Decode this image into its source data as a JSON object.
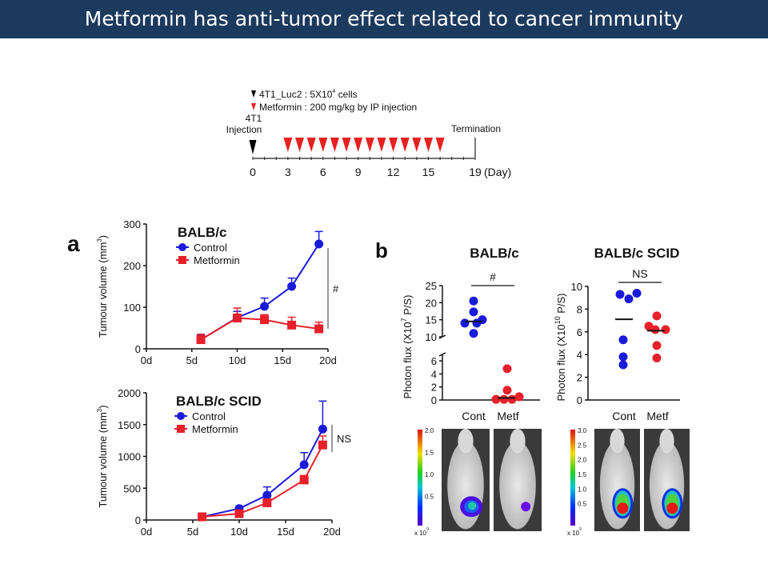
{
  "slide": {
    "title": "Metformin has anti-tumor effect related to cancer immunity"
  },
  "timeline": {
    "legend": [
      {
        "marker": "black-triangle",
        "text": "4T1_Luc2 : 5X10",
        "sup": "4",
        "suffix": " cells"
      },
      {
        "marker": "red-triangle",
        "text": "Metformin : 200 mg/kg by IP injection"
      }
    ],
    "injection_label_1": "4T1",
    "injection_label_2": "Injection",
    "termination_label": "Termination",
    "unit_label": "(Day)",
    "tick_days": [
      0,
      3,
      6,
      9,
      12,
      15,
      19
    ],
    "injection_day": 0,
    "metformin_days": [
      3,
      4,
      5,
      6,
      7,
      8,
      9,
      10,
      11,
      12,
      13,
      14,
      15,
      16
    ],
    "termination_day": 19,
    "colors": {
      "tumor": "#000000",
      "metformin": "#e82020"
    }
  },
  "panel_labels": {
    "a": "a",
    "b": "b"
  },
  "chart_data": [
    {
      "id": "a_top",
      "type": "line",
      "title": "BALB/c",
      "xlabel": "",
      "ylabel": "Tumour volume (mm",
      "ylabel_sup": "3",
      "ylabel_end": ")",
      "xlim": [
        0,
        20
      ],
      "ylim": [
        0,
        300
      ],
      "xticks": [
        0,
        5,
        10,
        15,
        20
      ],
      "xtick_labels": [
        "0d",
        "5d",
        "10d",
        "15d",
        "20d"
      ],
      "yticks": [
        0,
        100,
        200,
        300
      ],
      "series": [
        {
          "name": "Control",
          "color": "#1a1adb",
          "marker": "circle",
          "x": [
            6,
            10,
            13,
            16,
            19
          ],
          "y": [
            22,
            75,
            102,
            150,
            252
          ],
          "err_upper": [
            33,
            90,
            122,
            170,
            282
          ]
        },
        {
          "name": "Metformin",
          "color": "#e8202a",
          "marker": "square",
          "x": [
            6,
            10,
            13,
            16,
            19
          ],
          "y": [
            22,
            74,
            70,
            57,
            48
          ],
          "err_upper": [
            35,
            98,
            82,
            76,
            64
          ]
        }
      ],
      "significance": "#"
    },
    {
      "id": "a_bottom",
      "type": "line",
      "title": "BALB/c SCID",
      "xlabel": "",
      "ylabel": "Tumour volume (mm",
      "ylabel_sup": "3",
      "ylabel_end": ")",
      "xlim": [
        0,
        20
      ],
      "ylim": [
        0,
        2000
      ],
      "xticks": [
        0,
        5,
        10,
        15,
        20
      ],
      "xtick_labels": [
        "0d",
        "5d",
        "10d",
        "15d",
        "20d"
      ],
      "yticks": [
        0,
        500,
        1000,
        1500,
        2000
      ],
      "series": [
        {
          "name": "Control",
          "color": "#1a1adb",
          "marker": "circle",
          "x": [
            6,
            10,
            13,
            17,
            19
          ],
          "y": [
            50,
            180,
            390,
            870,
            1430
          ],
          "err_upper": [
            60,
            205,
            520,
            1060,
            1870
          ]
        },
        {
          "name": "Metformin",
          "color": "#e8202a",
          "marker": "square",
          "x": [
            6,
            10,
            13,
            17,
            19
          ],
          "y": [
            50,
            100,
            270,
            630,
            1180
          ],
          "err_upper": [
            60,
            115,
            300,
            700,
            1320
          ]
        }
      ],
      "significance": "NS"
    },
    {
      "id": "b_left",
      "type": "scatter",
      "title": "BALB/c",
      "ylabel": "Photon flux (X10",
      "ylabel_sup": "7",
      "ylabel_end": " P/S)",
      "categories": [
        "Cont",
        "Metf"
      ],
      "broken_axis": {
        "lower": [
          0,
          7
        ],
        "upper": [
          10,
          25
        ]
      },
      "yticks_lower": [
        0,
        2,
        4,
        6
      ],
      "yticks_upper": [
        10,
        15,
        20,
        25
      ],
      "series": [
        {
          "name": "Cont",
          "color": "#1a1adb",
          "values": [
            20.5,
            17.3,
            15.0,
            14.0,
            14.0,
            11.0
          ],
          "center_line": 14.5
        },
        {
          "name": "Metf",
          "color": "#e8202a",
          "values": [
            4.8,
            1.5,
            0.5,
            0.1,
            0.1,
            0.1
          ],
          "center_line": 0.3
        }
      ],
      "significance": "#"
    },
    {
      "id": "b_right",
      "type": "scatter",
      "title": "BALB/c SCID",
      "ylabel": "Photon flux (X10",
      "ylabel_sup": "10",
      "ylabel_end": " P/S)",
      "categories": [
        "Cont",
        "Metf"
      ],
      "ylim": [
        0,
        10
      ],
      "yticks": [
        0,
        2,
        4,
        6,
        8,
        10
      ],
      "series": [
        {
          "name": "Cont",
          "color": "#1a1adb",
          "values": [
            9.3,
            8.9,
            9.4,
            5.3,
            3.8,
            3.1
          ],
          "center_line": 7.1
        },
        {
          "name": "Metf",
          "color": "#e8202a",
          "values": [
            7.4,
            6.5,
            6.2,
            6.2,
            4.8,
            3.7
          ],
          "center_line": 6.1
        }
      ],
      "significance": "NS"
    }
  ],
  "imaging": {
    "left": {
      "scale_labels": [
        "2.0",
        "1.5",
        "1.0",
        "0.5"
      ],
      "unit": "x 10",
      "unit_sup": "9",
      "signal": [
        "moderate",
        "weak"
      ]
    },
    "right": {
      "scale_labels": [
        "3.0",
        "2.5",
        "2.0",
        "1.5",
        "1.0",
        "0.5"
      ],
      "unit": "x 10",
      "unit_sup": "9",
      "signal": [
        "strong",
        "strong"
      ]
    }
  }
}
